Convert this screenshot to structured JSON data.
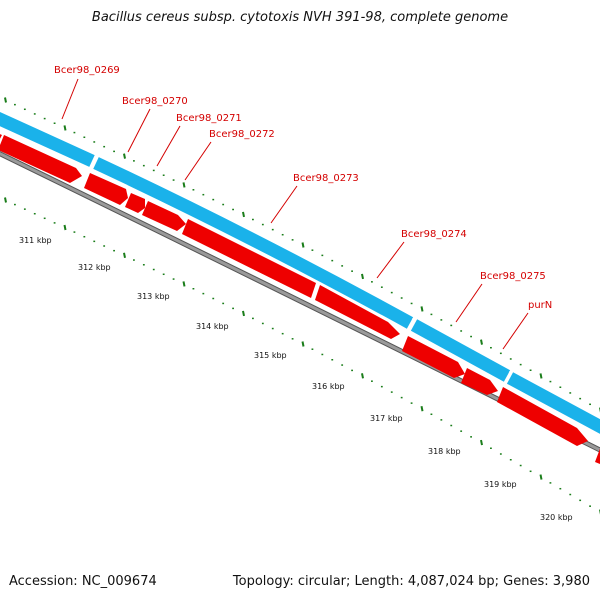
{
  "title": "Bacillus cereus subsp. cytotoxis NVH 391-98, complete genome",
  "footer": {
    "accession": "Accession: NC_009674",
    "summary": "Topology: circular; Length: 4,087,024 bp; Genes: 3,980"
  },
  "colors": {
    "forward_strand": "#1ab2ea",
    "reverse_strand": "#ee0000",
    "backbone": "#8c8c8c",
    "ticks": "#1a7d1a",
    "labels": "#d40000"
  },
  "scale": [
    "311 kbp",
    "312 kbp",
    "313 kbp",
    "314 kbp",
    "315 kbp",
    "316 kbp",
    "317 kbp",
    "318 kbp",
    "319 kbp",
    "320 kbp"
  ],
  "gene_labels": [
    "Bcer98_0269",
    "Bcer98_0270",
    "Bcer98_0271",
    "Bcer98_0272",
    "Bcer98_0273",
    "Bcer98_0274",
    "Bcer98_0275",
    "purN"
  ]
}
